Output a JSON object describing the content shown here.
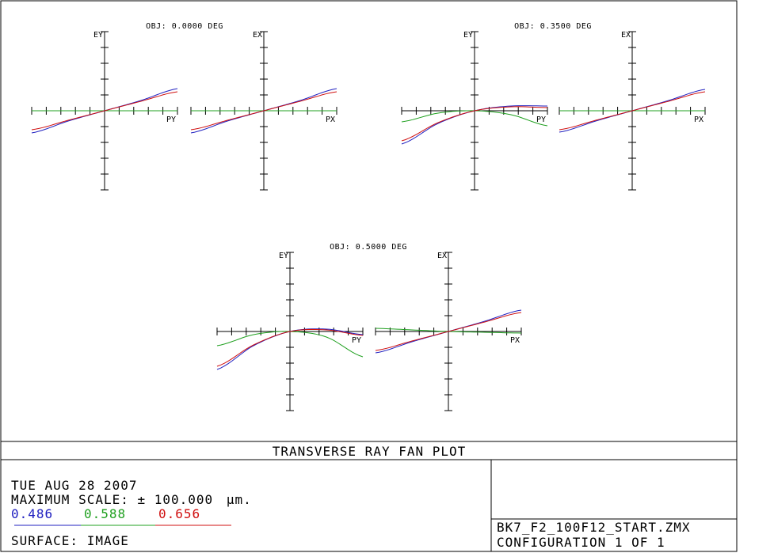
{
  "title_block": {
    "plot_title": "TRANSVERSE RAY FAN PLOT",
    "date": "TUE AUG 28 2007",
    "scale_label": "MAXIMUM SCALE: ± 100.000",
    "scale_unit": "µm.",
    "wavelengths": [
      {
        "label": "0.486",
        "color": "#2020c0"
      },
      {
        "label": "0.588",
        "color": "#20a020"
      },
      {
        "label": "0.656",
        "color": "#d01010"
      }
    ],
    "surface": "SURFACE: IMAGE",
    "filename": "BK7_F2_100F12_START.ZMX",
    "configuration": "CONFIGURATION  1  OF  1"
  },
  "chart_data": [
    {
      "type": "line",
      "title": "OBJ: 0.0000 DEG",
      "panels": [
        {
          "ylabel": "EY",
          "xlabel": "PY",
          "x": [
            -1,
            -0.5,
            0,
            0.5,
            1
          ],
          "series": [
            {
              "wavelength": "0.486",
              "values": [
                -0.28,
                -0.13,
                0,
                0.13,
                0.28
              ]
            },
            {
              "wavelength": "0.588",
              "values": [
                0,
                0,
                0,
                0,
                0
              ]
            },
            {
              "wavelength": "0.656",
              "values": [
                -0.24,
                -0.12,
                0,
                0.12,
                0.24
              ]
            }
          ]
        },
        {
          "ylabel": "EX",
          "xlabel": "PX",
          "x": [
            -1,
            -0.5,
            0,
            0.5,
            1
          ],
          "series": [
            {
              "wavelength": "0.486",
              "values": [
                -0.28,
                -0.13,
                0,
                0.13,
                0.28
              ]
            },
            {
              "wavelength": "0.588",
              "values": [
                0,
                0,
                0,
                0,
                0
              ]
            },
            {
              "wavelength": "0.656",
              "values": [
                -0.24,
                -0.12,
                0,
                0.12,
                0.24
              ]
            }
          ]
        }
      ]
    },
    {
      "type": "line",
      "title": "OBJ: 0.3500 DEG",
      "panels": [
        {
          "ylabel": "EY",
          "xlabel": "PY",
          "x": [
            -1,
            -0.5,
            0,
            0.5,
            1
          ],
          "series": [
            {
              "wavelength": "0.486",
              "values": [
                -0.42,
                -0.16,
                0,
                0.06,
                0.06
              ]
            },
            {
              "wavelength": "0.588",
              "values": [
                -0.14,
                -0.03,
                0,
                -0.05,
                -0.19
              ]
            },
            {
              "wavelength": "0.656",
              "values": [
                -0.38,
                -0.15,
                0,
                0.05,
                0.04
              ]
            }
          ]
        },
        {
          "ylabel": "EX",
          "xlabel": "PX",
          "x": [
            -1,
            -0.5,
            0,
            0.5,
            1
          ],
          "series": [
            {
              "wavelength": "0.486",
              "values": [
                -0.27,
                -0.13,
                0,
                0.13,
                0.27
              ]
            },
            {
              "wavelength": "0.588",
              "values": [
                0,
                0,
                0,
                0,
                0
              ]
            },
            {
              "wavelength": "0.656",
              "values": [
                -0.24,
                -0.12,
                0,
                0.12,
                0.24
              ]
            }
          ]
        }
      ]
    },
    {
      "type": "line",
      "title": "OBJ: 0.5000 DEG",
      "panels": [
        {
          "ylabel": "EY",
          "xlabel": "PY",
          "x": [
            -1,
            -0.5,
            0,
            0.5,
            1
          ],
          "series": [
            {
              "wavelength": "0.486",
              "values": [
                -0.48,
                -0.18,
                0,
                0.03,
                -0.04
              ]
            },
            {
              "wavelength": "0.588",
              "values": [
                -0.18,
                -0.04,
                0,
                -0.07,
                -0.32
              ]
            },
            {
              "wavelength": "0.656",
              "values": [
                -0.44,
                -0.17,
                0,
                0.02,
                -0.05
              ]
            }
          ]
        },
        {
          "ylabel": "EX",
          "xlabel": "PX",
          "x": [
            -1,
            -0.5,
            0,
            0.5,
            1
          ],
          "series": [
            {
              "wavelength": "0.486",
              "values": [
                -0.27,
                -0.13,
                0,
                0.13,
                0.27
              ]
            },
            {
              "wavelength": "0.588",
              "values": [
                0.04,
                0.02,
                0,
                -0.01,
                -0.02
              ]
            },
            {
              "wavelength": "0.656",
              "values": [
                -0.24,
                -0.12,
                0,
                0.12,
                0.24
              ]
            }
          ]
        }
      ]
    }
  ]
}
